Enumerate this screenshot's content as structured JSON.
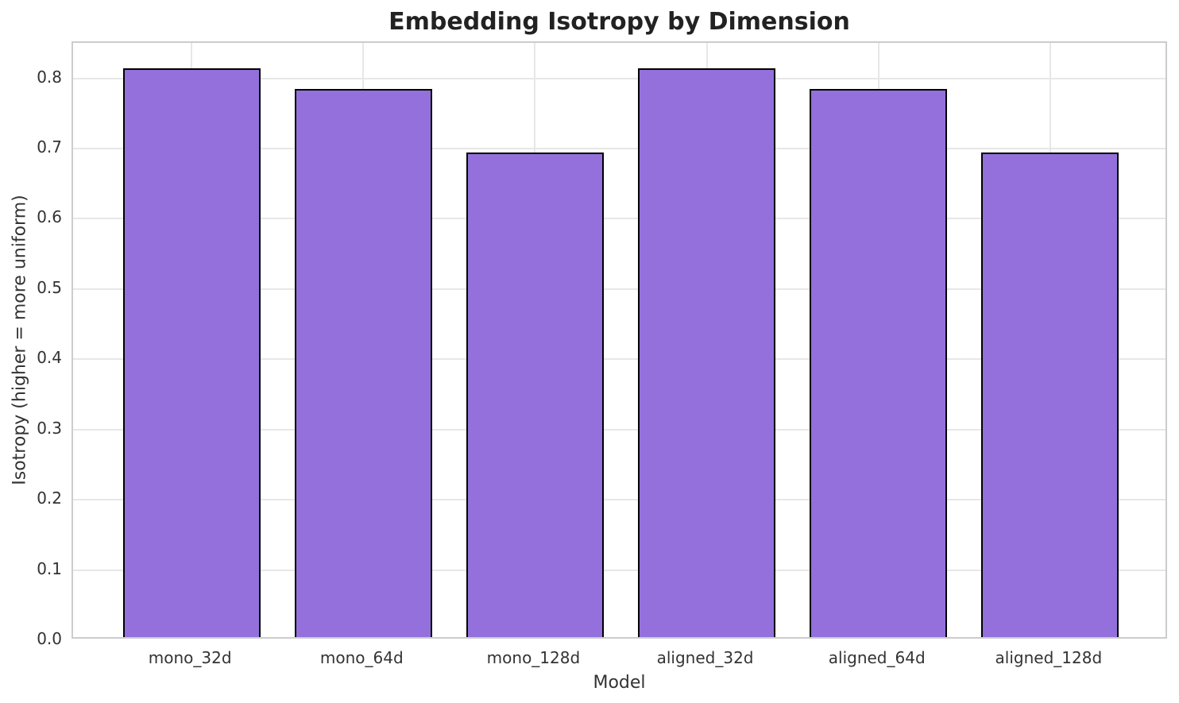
{
  "chart_data": {
    "type": "bar",
    "title": "Embedding Isotropy by Dimension",
    "xlabel": "Model",
    "ylabel": "Isotropy (higher = more uniform)",
    "categories": [
      "mono_32d",
      "mono_64d",
      "mono_128d",
      "aligned_32d",
      "aligned_64d",
      "aligned_128d"
    ],
    "values": [
      0.81,
      0.78,
      0.69,
      0.81,
      0.78,
      0.69
    ],
    "ytick_labels": [
      "0.0",
      "0.1",
      "0.2",
      "0.3",
      "0.4",
      "0.5",
      "0.6",
      "0.7",
      "0.8"
    ],
    "ylim": [
      0,
      0.8505
    ],
    "grid": true,
    "legend": null,
    "colors": {
      "bar_fill": "#9370DB",
      "bar_edge": "#000000",
      "grid_line": "#e7e7e7",
      "axes_edge": "#cccccc",
      "tick_text": "#333333",
      "title_text": "#222222"
    }
  }
}
